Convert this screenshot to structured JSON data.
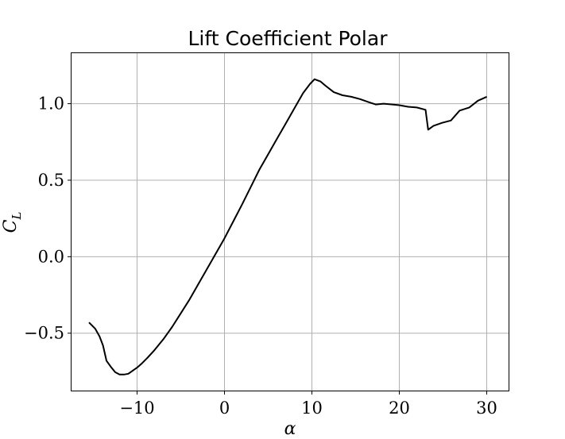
{
  "chart_data": {
    "type": "line",
    "title": "Lift Coefficient Polar",
    "xlabel": "α",
    "ylabel": "C",
    "ylabel_subscript": "L",
    "xlim": [
      -17.5,
      32.5
    ],
    "ylim": [
      -0.875,
      1.33
    ],
    "xticks": [
      -10,
      0,
      10,
      20,
      30
    ],
    "xtick_labels": [
      "−10",
      "0",
      "10",
      "20",
      "30"
    ],
    "yticks": [
      -0.5,
      0.0,
      0.5,
      1.0
    ],
    "ytick_labels": [
      "−0.5",
      "0.0",
      "0.5",
      "1.0"
    ],
    "grid": true,
    "series": [
      {
        "color": "#000000",
        "x": [
          -15.5,
          -14.8,
          -14.3,
          -13.9,
          -13.5,
          -13.0,
          -12.5,
          -12.0,
          -11.5,
          -11.0,
          -10.5,
          -10.0,
          -9.5,
          -8.8,
          -8.0,
          -7.0,
          -6.0,
          -5.0,
          -4.0,
          -3.0,
          -2.0,
          -1.0,
          0.0,
          1.0,
          2.0,
          3.0,
          4.0,
          5.0,
          6.0,
          7.0,
          8.0,
          9.0,
          9.8,
          10.3,
          11.0,
          11.5,
          12.5,
          13.5,
          14.5,
          15.5,
          16.5,
          17.3,
          18.2,
          19.2,
          20.0,
          21.0,
          22.0,
          23.0,
          23.3,
          23.9,
          24.9,
          25.9,
          26.9,
          28.0,
          29.0,
          30.0
        ],
        "y": [
          -0.43,
          -0.47,
          -0.52,
          -0.58,
          -0.68,
          -0.72,
          -0.755,
          -0.77,
          -0.77,
          -0.765,
          -0.745,
          -0.725,
          -0.7,
          -0.66,
          -0.61,
          -0.54,
          -0.46,
          -0.37,
          -0.28,
          -0.18,
          -0.08,
          0.02,
          0.12,
          0.23,
          0.34,
          0.455,
          0.57,
          0.67,
          0.77,
          0.87,
          0.97,
          1.07,
          1.13,
          1.16,
          1.145,
          1.12,
          1.075,
          1.055,
          1.045,
          1.03,
          1.01,
          0.995,
          1.0,
          0.995,
          0.99,
          0.98,
          0.975,
          0.96,
          0.83,
          0.855,
          0.875,
          0.89,
          0.955,
          0.975,
          1.02,
          1.045
        ]
      }
    ]
  }
}
